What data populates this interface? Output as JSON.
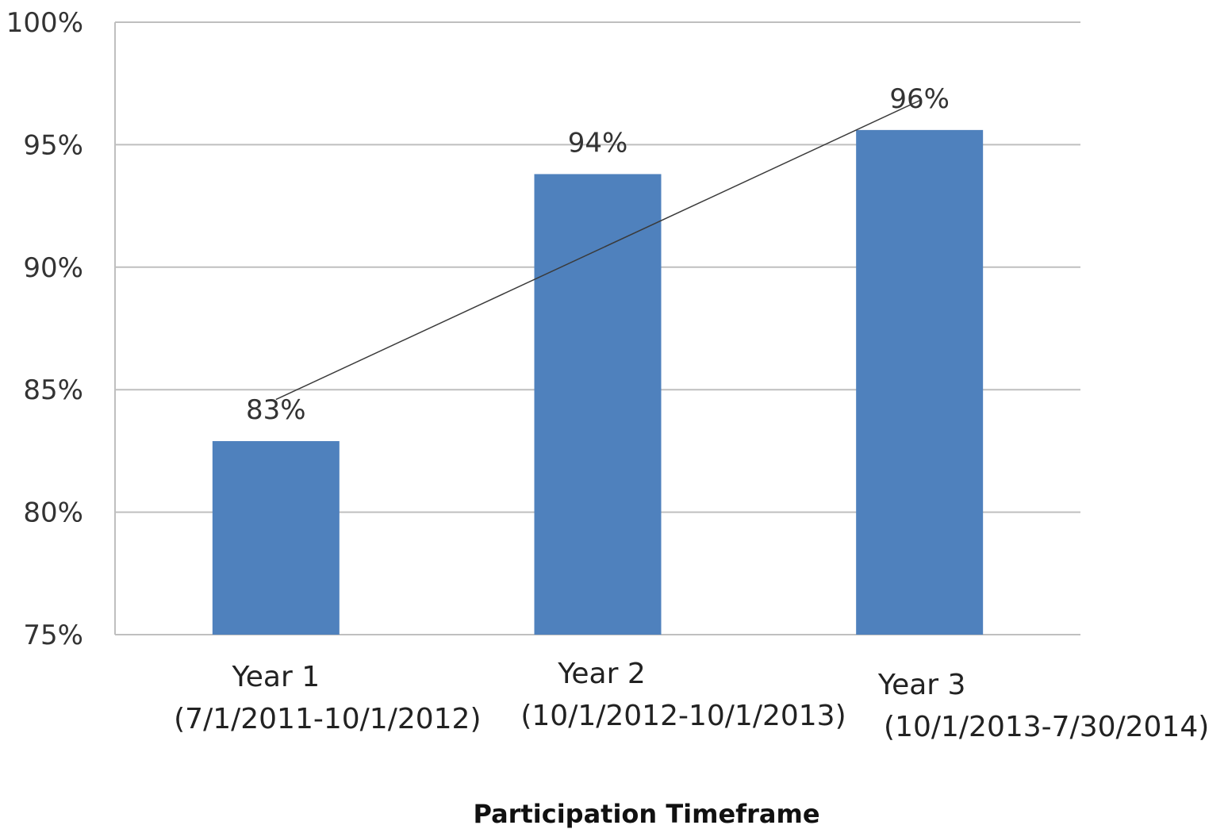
{
  "chart_data": {
    "type": "bar",
    "title": "",
    "xlabel": "Participation Timeframe",
    "ylabel": "",
    "ylim": [
      75,
      100
    ],
    "y_ticks": [
      "75%",
      "80%",
      "85%",
      "90%",
      "95%",
      "100%"
    ],
    "y_tick_values": [
      75,
      80,
      85,
      90,
      95,
      100
    ],
    "grid": true,
    "trendline": true,
    "categories": [
      {
        "line1": "Year 1",
        "line2": "(7/1/2011-10/1/2012)"
      },
      {
        "line1": "Year 2",
        "line2": "(10/1/2012-10/1/2013)"
      },
      {
        "line1": "Year 3",
        "line2": "(10/1/2013-7/30/2014)"
      }
    ],
    "values": [
      82.9,
      93.8,
      95.6
    ],
    "data_labels": [
      "83%",
      "94%",
      "96%"
    ],
    "trend_values": [
      84.6,
      90.7,
      96.8
    ],
    "bar_color": "#4f81bd",
    "grid_color": "#bfbfbf",
    "trend_color": "#3a3a3a"
  }
}
